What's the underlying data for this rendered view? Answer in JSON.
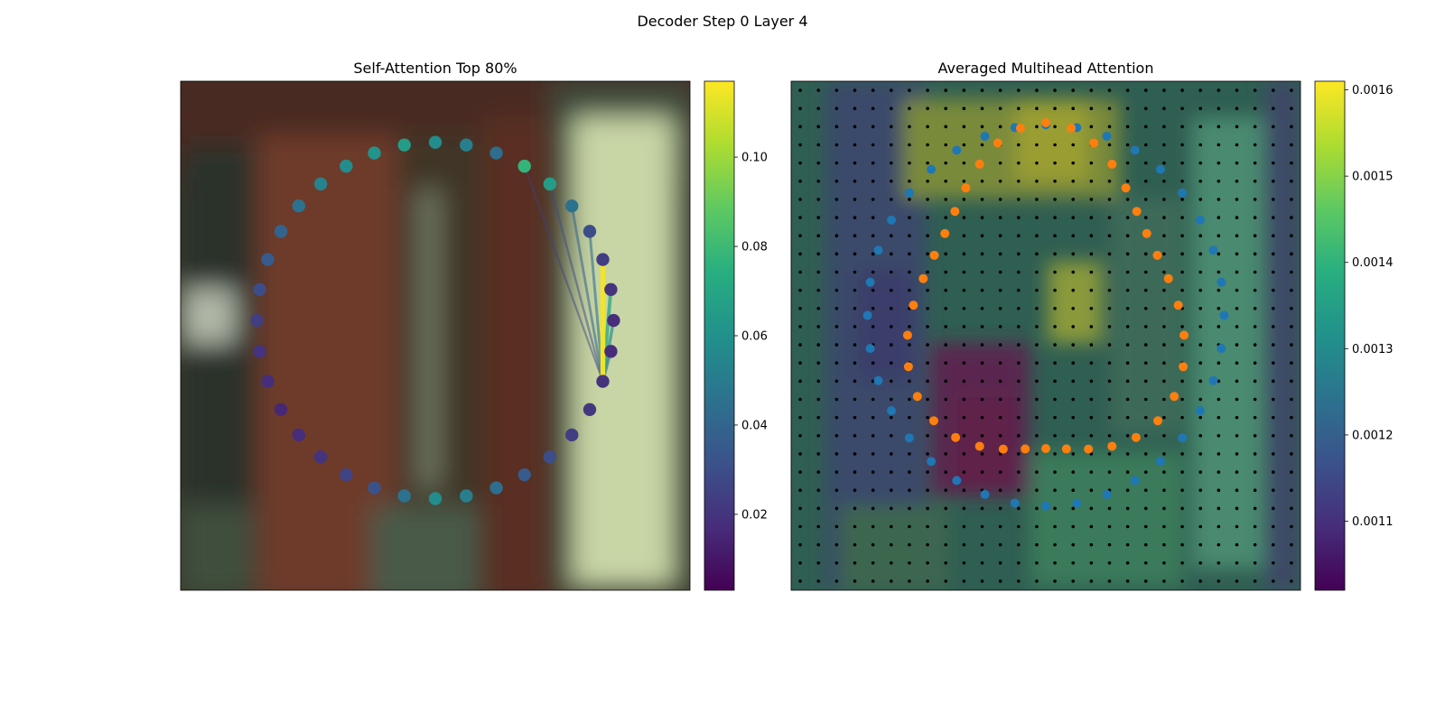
{
  "figure": {
    "title": "Decoder Step 0 Layer 4"
  },
  "chart_data": [
    {
      "type": "scatter",
      "title": "Self-Attention Top 80%",
      "background": "blurred photo (image content)",
      "ring_center": [
        0.5,
        0.47
      ],
      "ring_radius": 0.35,
      "point_values": [
        0.078,
        0.066,
        0.046,
        0.03,
        0.024,
        0.02,
        0.018,
        0.018,
        0.02,
        0.022,
        0.024,
        0.03,
        0.036,
        0.044,
        0.052,
        0.058,
        0.046,
        0.032,
        0.026,
        0.02,
        0.018,
        0.016,
        0.018,
        0.02,
        0.024,
        0.03,
        0.036,
        0.04,
        0.046,
        0.054,
        0.058,
        0.062,
        0.066,
        0.058,
        0.052,
        0.044
      ],
      "source_index": 8,
      "attention_lines": [
        {
          "target": 4,
          "weight": 0.115
        },
        {
          "target": 5,
          "weight": 0.07
        },
        {
          "target": 6,
          "weight": 0.06
        },
        {
          "target": 7,
          "weight": 0.05
        },
        {
          "target": 3,
          "weight": 0.045
        },
        {
          "target": 2,
          "weight": 0.04
        },
        {
          "target": 1,
          "weight": 0.03
        },
        {
          "target": 0,
          "weight": 0.025
        }
      ],
      "colorbar": {
        "colormap": "viridis",
        "range": [
          0.003,
          0.117
        ],
        "ticks": [
          "0.02",
          "0.04",
          "0.06",
          "0.08",
          "0.10"
        ]
      }
    },
    {
      "type": "heatmap",
      "title": "Averaged Multihead Attention",
      "grid": [
        28,
        28
      ],
      "blue_points_count": 36,
      "orange_points_count": 36,
      "colors": {
        "blue_points": "#1f77b4",
        "orange_points": "#ff7f0e",
        "grid_dots": "#000000"
      },
      "colorbar": {
        "colormap": "viridis",
        "range": [
          0.00102,
          0.00161
        ],
        "ticks": [
          "0.0011",
          "0.0012",
          "0.0013",
          "0.0014",
          "0.0015",
          "0.0016"
        ]
      }
    }
  ]
}
